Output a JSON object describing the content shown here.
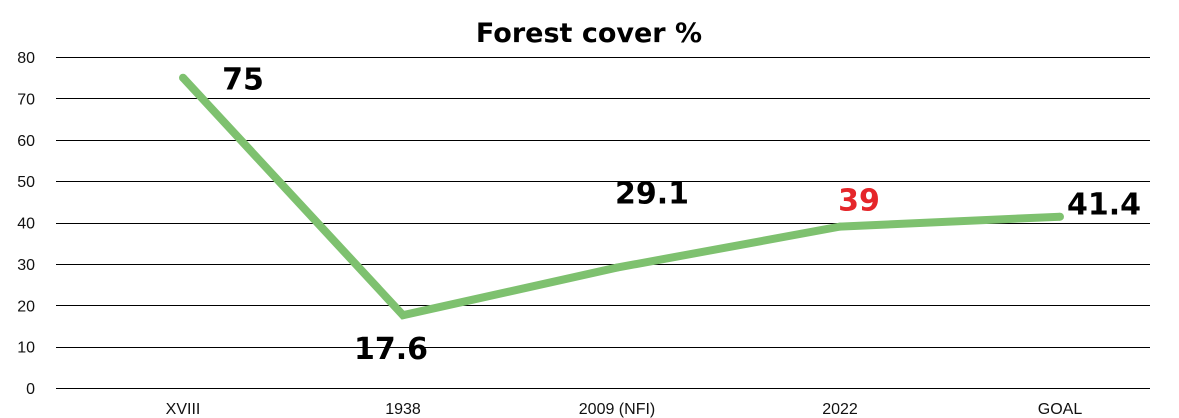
{
  "chart_data": {
    "type": "line",
    "title": "Forest cover %",
    "xlabel": "",
    "ylabel": "",
    "categories": [
      "XVIII",
      "1938",
      "2009 (NFI)",
      "2022",
      "GOAL"
    ],
    "series": [
      {
        "values": [
          75,
          17.6,
          29.1,
          39,
          41.4
        ],
        "labels": [
          "75",
          "17.6",
          "29.1",
          "39",
          "41.4"
        ],
        "label_colors": [
          "#000000",
          "#000000",
          "#000000",
          "#e5262a",
          "#000000"
        ]
      }
    ],
    "ylim": [
      0,
      80
    ],
    "yticks": [
      0,
      10,
      20,
      30,
      40,
      50,
      60,
      70,
      80
    ],
    "grid": true,
    "legend": "none",
    "colors": {
      "line": "#7ec16f",
      "grid": "#000000",
      "text": "#000000",
      "highlight": "#e5262a"
    }
  }
}
